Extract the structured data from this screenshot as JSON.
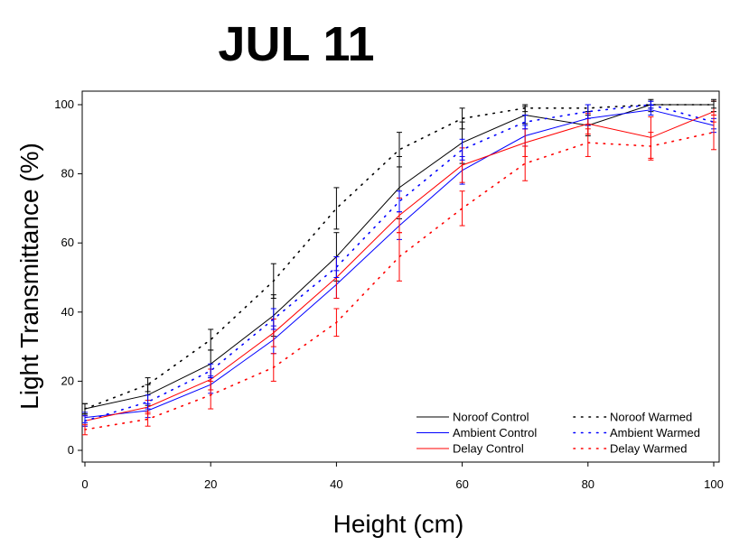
{
  "chart_data": {
    "type": "line",
    "title": "JUL 11",
    "xlabel": "Height (cm)",
    "ylabel": "Light Transmittance (%)",
    "xlim": [
      0,
      100
    ],
    "ylim": [
      0,
      100
    ],
    "x_ticks": [
      0,
      20,
      40,
      60,
      80,
      100
    ],
    "y_ticks": [
      0,
      20,
      40,
      60,
      80,
      100
    ],
    "x": [
      0,
      10,
      20,
      30,
      40,
      50,
      60,
      70,
      80,
      90,
      100
    ],
    "grid": false,
    "legend_position": "bottom-right",
    "series": [
      {
        "name": "Noroof Control",
        "color": "#000000",
        "style": "solid",
        "values": [
          12,
          16,
          25,
          39,
          56,
          76,
          89,
          97,
          94,
          100,
          100
        ],
        "err": [
          1.5,
          3,
          4,
          6,
          7,
          9,
          6,
          2.5,
          3,
          2,
          2
        ]
      },
      {
        "name": "Ambient Control",
        "color": "#0000ff",
        "style": "solid",
        "values": [
          9.5,
          11.5,
          19,
          32,
          48,
          65,
          81,
          91,
          96,
          98.5,
          94
        ],
        "err": [
          1.5,
          2,
          2.5,
          4,
          4,
          4,
          4,
          3,
          2,
          1.5,
          2
        ]
      },
      {
        "name": "Delay Control",
        "color": "#ff0000",
        "style": "solid",
        "values": [
          8.5,
          12.5,
          20.5,
          34,
          50,
          68,
          82.5,
          89,
          94.5,
          90.5,
          98
        ],
        "err": [
          1.5,
          2,
          3,
          4,
          6,
          5,
          5,
          4,
          3,
          6,
          3
        ]
      },
      {
        "name": "Noroof Warmed",
        "color": "#000000",
        "style": "dotted",
        "values": [
          12,
          19,
          32,
          49,
          70,
          87,
          96,
          99,
          99,
          100,
          100
        ],
        "err": [
          1.5,
          2,
          3,
          5,
          6,
          5,
          3,
          1,
          1,
          1,
          1
        ]
      },
      {
        "name": "Ambient Warmed",
        "color": "#0000ff",
        "style": "dotted",
        "values": [
          8.5,
          14,
          23,
          38,
          53,
          72,
          87,
          95,
          98,
          100,
          95
        ],
        "err": [
          1.5,
          2,
          2,
          3,
          3,
          3,
          3,
          2,
          2,
          1,
          2
        ]
      },
      {
        "name": "Delay Warmed",
        "color": "#ff0000",
        "style": "dotted",
        "values": [
          6,
          9,
          16,
          24,
          37,
          56,
          70,
          83,
          89,
          88,
          92
        ],
        "err": [
          1.5,
          2,
          4,
          4,
          4,
          7,
          5,
          5,
          4,
          4,
          5
        ]
      }
    ]
  }
}
